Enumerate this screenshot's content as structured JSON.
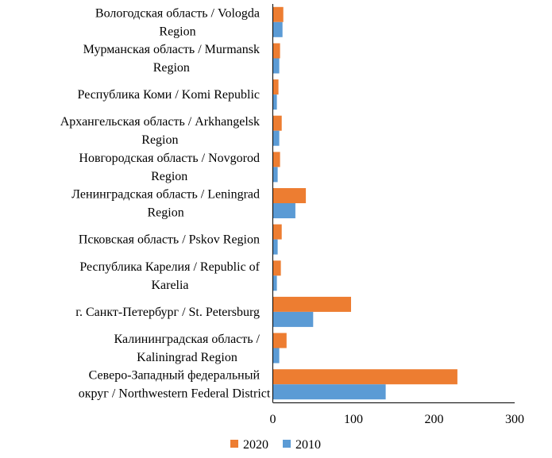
{
  "chart_data": {
    "type": "bar",
    "orientation": "horizontal",
    "categories": [
      [
        "Вологодская область /  Vologda",
        "Region"
      ],
      [
        "Мурманская область / Murmansk",
        "Region"
      ],
      [
        "Республика Коми / Komi Republic"
      ],
      [
        "Архангельская область / Arkhangelsk",
        "Region"
      ],
      [
        "Новгородская область / Novgorod",
        "Region"
      ],
      [
        "Ленинградская область / Leningrad",
        "Region"
      ],
      [
        "Псковская область / Pskov Region"
      ],
      [
        "Республика Карелия / Republic of",
        "Karelia"
      ],
      [
        "г. Санкт-Петербург / St. Petersburg"
      ],
      [
        "Калининградская область /",
        "Kaliningrad Region"
      ],
      [
        "Северо-Западный федеральный",
        "округ / Northwestern Federal District"
      ]
    ],
    "series": [
      {
        "name": "2020",
        "color": "#ED7D31",
        "values": [
          13,
          9,
          7,
          11,
          9,
          41,
          11,
          10,
          97,
          17,
          229
        ]
      },
      {
        "name": "2010",
        "color": "#5B9BD5",
        "values": [
          12,
          8,
          5,
          8,
          6,
          28,
          6,
          5,
          50,
          8,
          140
        ]
      }
    ],
    "xlim": [
      0,
      300
    ],
    "xticks": [
      "0",
      "100",
      "200",
      "300"
    ],
    "grid": false,
    "legend_position": "bottom",
    "legend_order": [
      "2020",
      "2010"
    ],
    "title": "",
    "xlabel": "",
    "ylabel": ""
  }
}
